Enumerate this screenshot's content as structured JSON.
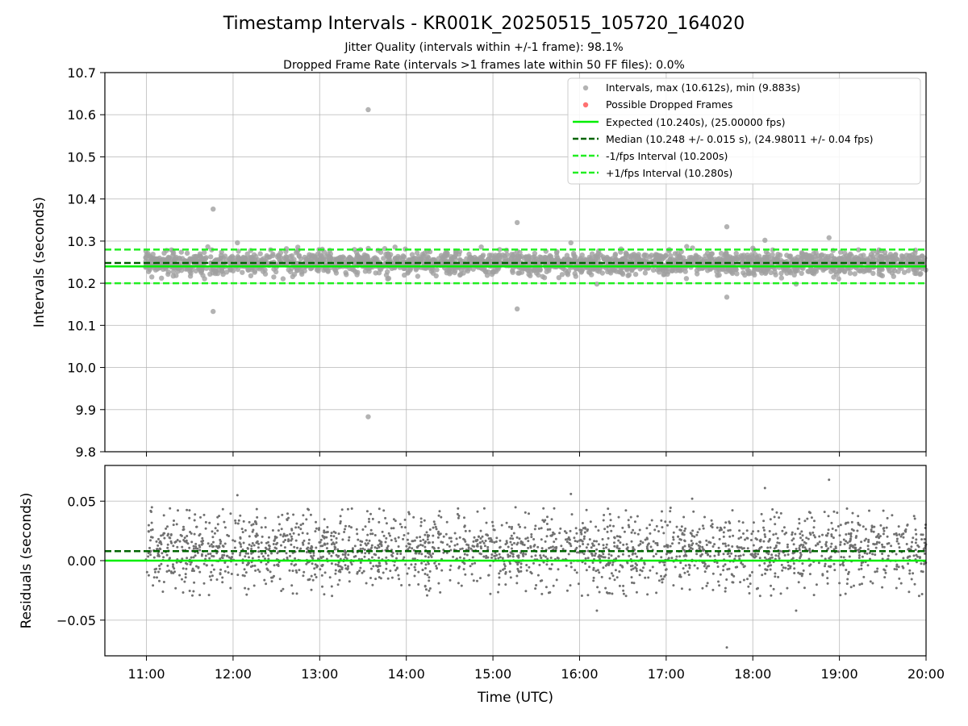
{
  "figure": {
    "title": "Timestamp Intervals - KR001K_20250515_105720_164020",
    "subtitle_1": "Jitter Quality (intervals within +/-1 frame): 98.1%",
    "subtitle_2": "Dropped Frame Rate (intervals >1 frames late within 50 FF files): 0.0%"
  },
  "chart_data": [
    {
      "type": "scatter",
      "name": "intervals-panel",
      "xlabel": "",
      "ylabel": "Intervals (seconds)",
      "x_unit": "hours UTC",
      "xlim": [
        10.52,
        20.0
      ],
      "ylim": [
        9.8,
        10.7
      ],
      "yticks": [
        "9.8",
        "9.9",
        "10.0",
        "10.1",
        "10.2",
        "10.3",
        "10.4",
        "10.5",
        "10.6",
        "10.7"
      ],
      "ytick_values": [
        9.8,
        9.9,
        10.0,
        10.1,
        10.2,
        10.3,
        10.4,
        10.5,
        10.6,
        10.7
      ],
      "xtick_values": [
        11,
        12,
        13,
        14,
        15,
        16,
        17,
        18,
        19,
        20
      ],
      "grid": true,
      "legend_position": "top-right",
      "series": [
        {
          "name": "Intervals, max (10.612s), min (9.883s)",
          "color": "#a0a0a0",
          "marker": "circle",
          "x_range": [
            10.99,
            20.0
          ],
          "typical_range": [
            10.21,
            10.29
          ],
          "center": 10.248,
          "outliers": [
            {
              "x": 11.77,
              "y": 10.376
            },
            {
              "x": 11.77,
              "y": 10.133
            },
            {
              "x": 12.05,
              "y": 10.296
            },
            {
              "x": 13.56,
              "y": 10.612
            },
            {
              "x": 13.56,
              "y": 9.883
            },
            {
              "x": 15.28,
              "y": 10.344
            },
            {
              "x": 15.28,
              "y": 10.139
            },
            {
              "x": 15.9,
              "y": 10.296
            },
            {
              "x": 16.2,
              "y": 10.198
            },
            {
              "x": 17.7,
              "y": 10.334
            },
            {
              "x": 17.7,
              "y": 10.167
            },
            {
              "x": 18.14,
              "y": 10.302
            },
            {
              "x": 18.5,
              "y": 10.198
            },
            {
              "x": 18.88,
              "y": 10.308
            }
          ]
        },
        {
          "name": "Possible Dropped Frames",
          "color": "#ff4d4d",
          "marker": "circle",
          "points": []
        },
        {
          "name": "Expected (10.240s), (25.00000 fps)",
          "color": "#00ee00",
          "style": "solid",
          "y": 10.24
        },
        {
          "name": "Median (10.248 +/- 0.015 s), (24.98011 +/- 0.04 fps)",
          "color": "#006400",
          "style": "dashed",
          "y": 10.248
        },
        {
          "name": "-1/fps Interval (10.200s)",
          "color": "#22ee22",
          "style": "dashed",
          "y": 10.2
        },
        {
          "name": "+1/fps Interval (10.280s)",
          "color": "#22ee22",
          "style": "dashed",
          "y": 10.28
        }
      ]
    },
    {
      "type": "scatter",
      "name": "residuals-panel",
      "xlabel": "Time (UTC)",
      "ylabel": "Residuals (seconds)",
      "x_unit": "hours UTC",
      "xlim": [
        10.52,
        20.0
      ],
      "ylim": [
        -0.08,
        0.08
      ],
      "yticks": [
        "−0.05",
        "0.00",
        "0.05"
      ],
      "ytick_values": [
        -0.05,
        0.0,
        0.05
      ],
      "xticks": [
        "11:00",
        "12:00",
        "13:00",
        "14:00",
        "15:00",
        "16:00",
        "17:00",
        "18:00",
        "19:00",
        "20:00"
      ],
      "xtick_values": [
        11,
        12,
        13,
        14,
        15,
        16,
        17,
        18,
        19,
        20
      ],
      "grid": true,
      "series": [
        {
          "name": "residuals",
          "color": "#707070",
          "marker": "dot",
          "x_range": [
            10.99,
            20.0
          ],
          "typical_range": [
            -0.03,
            0.045
          ],
          "center": 0.008,
          "outliers": [
            {
              "x": 12.05,
              "y": 0.055
            },
            {
              "x": 15.9,
              "y": 0.056
            },
            {
              "x": 17.3,
              "y": 0.052
            },
            {
              "x": 18.14,
              "y": 0.061
            },
            {
              "x": 18.88,
              "y": 0.068
            },
            {
              "x": 16.2,
              "y": -0.042
            },
            {
              "x": 18.5,
              "y": -0.042
            },
            {
              "x": 17.7,
              "y": -0.073
            }
          ]
        },
        {
          "name": "expected-zero",
          "color": "#00ee00",
          "style": "solid",
          "y": 0.0
        },
        {
          "name": "median-offset",
          "color": "#006400",
          "style": "dashed",
          "y": 0.008
        }
      ]
    }
  ]
}
